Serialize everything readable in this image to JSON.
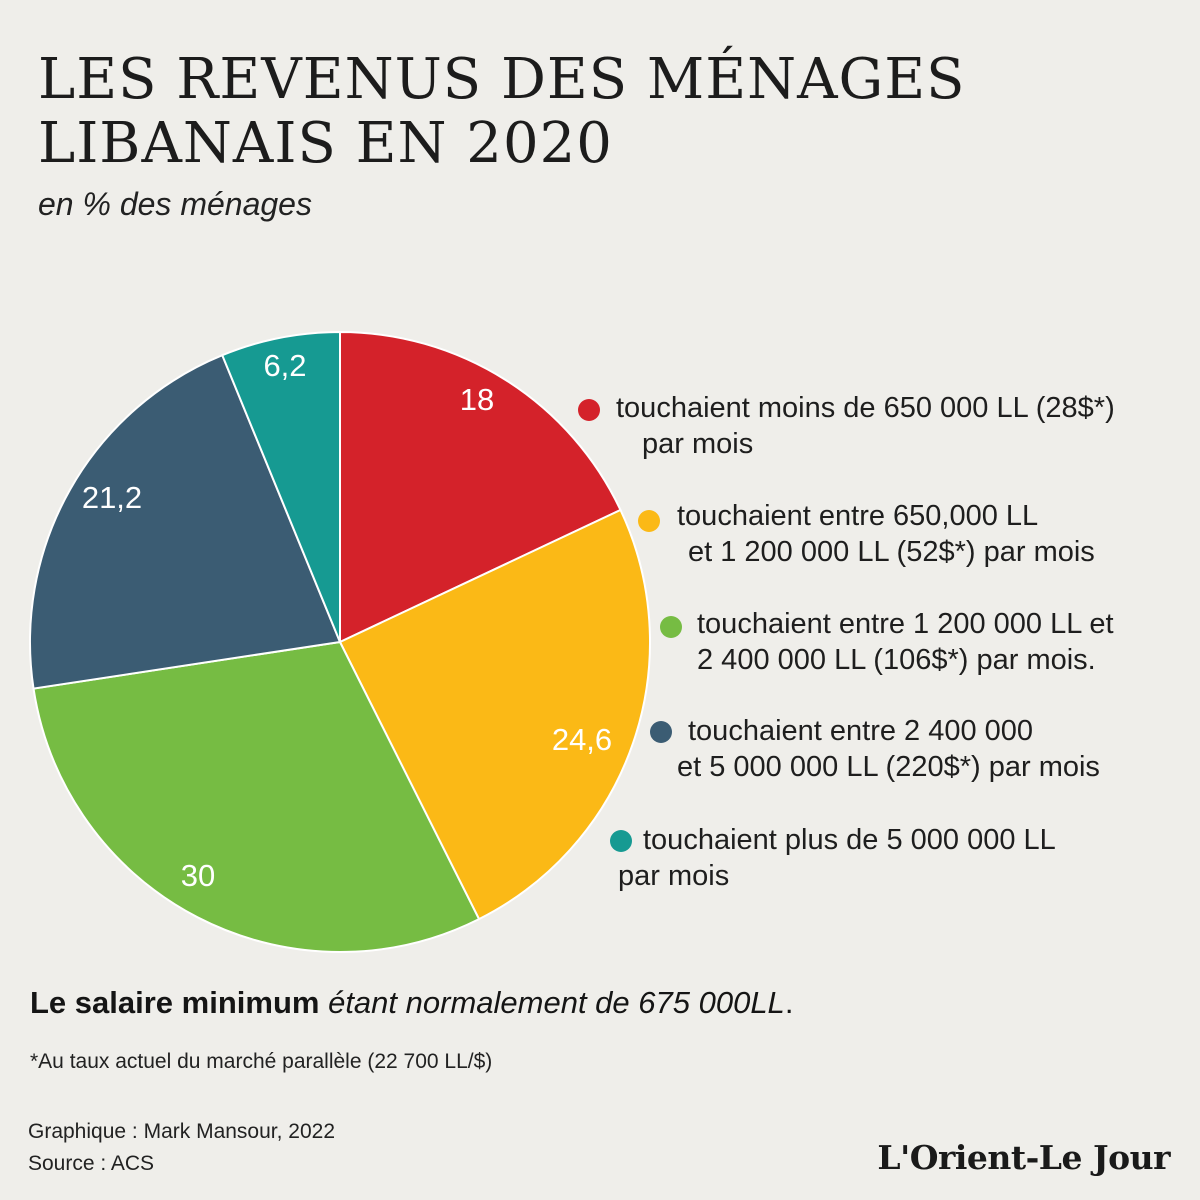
{
  "title": "LES REVENUS DES MÉNAGES LIBANAIS EN 2020",
  "subtitle": "en % des ménages",
  "chart_data": {
    "type": "pie",
    "slices": [
      {
        "label": "touchaient moins de 650 000 LL (28$*) par mois",
        "value": 18,
        "value_label": "18",
        "color": "#d4222a"
      },
      {
        "label": "touchaient entre 650,000 LL et 1 200 000 LL (52$*) par mois",
        "value": 24.6,
        "value_label": "24,6",
        "color": "#fbb916"
      },
      {
        "label": "touchaient entre 1 200 000 LL et 2 400 000 LL (106$*) par mois.",
        "value": 30,
        "value_label": "30",
        "color": "#76bc43"
      },
      {
        "label": "touchaient entre 2 400 000 et 5 000 000 LL (220$*) par mois",
        "value": 21.2,
        "value_label": "21,2",
        "color": "#3b5c73"
      },
      {
        "label": "touchaient plus de 5 000 000 LL par mois",
        "value": 6.2,
        "value_label": "6,2",
        "color": "#169a92"
      }
    ],
    "legend_placement": "right"
  },
  "legend": [
    {
      "line1": "touchaient moins de 650 000 LL (28$*)",
      "line2": "par mois"
    },
    {
      "line1": "touchaient entre 650,000 LL",
      "line2": "et 1 200 000 LL (52$*) par mois"
    },
    {
      "line1": "touchaient entre 1 200 000 LL et",
      "line2": "2 400 000 LL (106$*) par mois."
    },
    {
      "line1": "touchaient entre 2 400 000",
      "line2": "et 5 000 000 LL (220$*) par mois"
    },
    {
      "line1": "touchaient plus de 5 000 000 LL",
      "line2": "par mois"
    }
  ],
  "note": {
    "bold": "Le salaire minimum",
    "italic": "étant normalement de 675 000LL",
    "end": "."
  },
  "footnote": "*Au taux actuel du marché parallèle (22 700 LL/$)",
  "credits": {
    "graphic": "Graphique : Mark Mansour, 2022",
    "source": "Source : ACS"
  },
  "logo": "L'Orient-Le Jour"
}
